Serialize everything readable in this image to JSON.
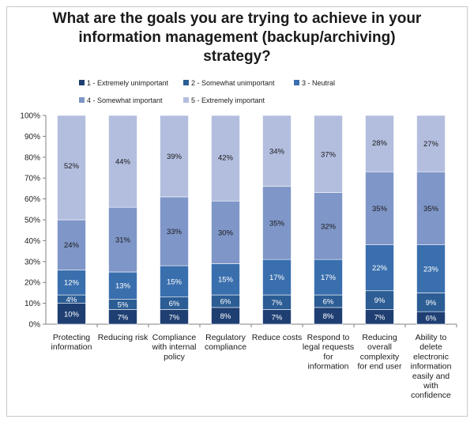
{
  "chart_data": {
    "type": "bar",
    "stacked": true,
    "percent": true,
    "title_lines": [
      "What are the goals you are trying to achieve in your",
      "information management (backup/archiving)",
      "strategy?"
    ],
    "categories": [
      [
        "Protecting",
        "information"
      ],
      [
        "Reducing risk"
      ],
      [
        "Compliance",
        "with internal",
        "policy"
      ],
      [
        "Regulatory",
        "compliance"
      ],
      [
        "Reduce costs"
      ],
      [
        "Respond to",
        "legal requests",
        "for",
        "information"
      ],
      [
        "Reducing",
        "overall",
        "complexity",
        "for end user"
      ],
      [
        "Ability to",
        "delete",
        "electronic",
        "information",
        "easily and",
        "with",
        "confidence"
      ]
    ],
    "series": [
      {
        "name": "1 - Extremely unimportant",
        "color": "#1f3f73",
        "values": [
          10,
          7,
          7,
          8,
          7,
          8,
          7,
          6
        ],
        "labels": [
          "10%",
          "7%",
          "7%",
          "8%",
          "7%",
          "8%",
          "7%",
          "6%"
        ]
      },
      {
        "name": "2 - Somewhat unimportant",
        "color": "#2c5d95",
        "values": [
          4,
          5,
          6,
          6,
          7,
          6,
          9,
          9
        ],
        "labels": [
          "4%",
          "5%",
          "6%",
          "6%",
          "7%",
          "6%",
          "9%",
          "9%"
        ]
      },
      {
        "name": "3 - Neutral",
        "color": "#3a6fae",
        "values": [
          12,
          13,
          15,
          15,
          17,
          17,
          22,
          23
        ],
        "labels": [
          "12%",
          "13%",
          "15%",
          "15%",
          "17%",
          "17%",
          "22%",
          "23%"
        ]
      },
      {
        "name": "4 - Somewhat important",
        "color": "#7f96c8",
        "values": [
          24,
          31,
          33,
          30,
          35,
          32,
          35,
          35
        ],
        "labels": [
          "24%",
          "31%",
          "33%",
          "30%",
          "35%",
          "32%",
          "35%",
          "35%"
        ]
      },
      {
        "name": "5 - Extremely important",
        "color": "#b3bedf",
        "values": [
          52,
          44,
          39,
          42,
          34,
          37,
          28,
          27
        ],
        "labels": [
          "52%",
          "44%",
          "39%",
          "42%",
          "34%",
          "37%",
          "28%",
          "27%"
        ]
      }
    ],
    "y_ticks": [
      "0%",
      "10%",
      "20%",
      "30%",
      "40%",
      "50%",
      "60%",
      "70%",
      "80%",
      "90%",
      "100%"
    ],
    "ylim": [
      0,
      100
    ],
    "legend_position": "top",
    "grid": false
  }
}
